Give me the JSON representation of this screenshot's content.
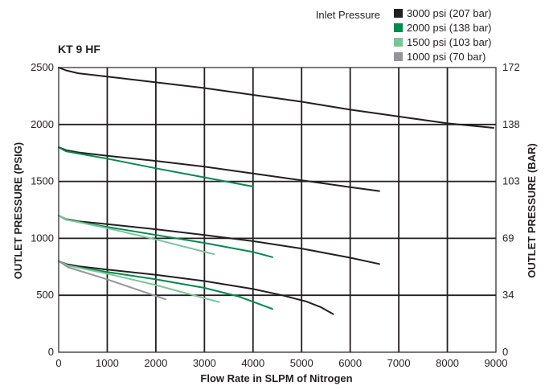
{
  "chart_data": {
    "type": "line",
    "title": "KT 9 HF",
    "xlabel": "Flow Rate in SLPM of Nitrogen",
    "ylabel": "OUTLET PRESSURE (PSIG)",
    "ylabel_right": "OUTLET PRESSURE (BAR)",
    "xlim": [
      0,
      9000
    ],
    "ylim": [
      0,
      2500
    ],
    "x_ticks": [
      0,
      1000,
      2000,
      3000,
      4000,
      5000,
      6000,
      7000,
      8000,
      9000
    ],
    "y_ticks": [
      0,
      500,
      1000,
      1500,
      2000,
      2500
    ],
    "y_ticks_right": [
      {
        "value": 0,
        "label": "0"
      },
      {
        "value": 500,
        "label": "34"
      },
      {
        "value": 1000,
        "label": "69"
      },
      {
        "value": 1500,
        "label": "103"
      },
      {
        "value": 2000,
        "label": "138"
      },
      {
        "value": 2500,
        "label": "172"
      }
    ],
    "grid": true,
    "legend": {
      "title": "Inlet Pressure",
      "placement": "top-right",
      "entries": [
        {
          "label": "3000 psi (207 bar)",
          "color": "#231f20"
        },
        {
          "label": "2000 psi (138 bar)",
          "color": "#008a4e"
        },
        {
          "label": "1500 psi (103 bar)",
          "color": "#7bc49a"
        },
        {
          "label": "1000 psi (70 bar)",
          "color": "#939598"
        }
      ]
    },
    "series": [
      {
        "inlet": "3000",
        "color": "#231f20",
        "points": [
          [
            0,
            2500
          ],
          [
            150,
            2475
          ],
          [
            400,
            2450
          ],
          [
            1000,
            2420
          ],
          [
            2000,
            2370
          ],
          [
            3000,
            2320
          ],
          [
            4000,
            2260
          ],
          [
            5000,
            2200
          ],
          [
            6000,
            2130
          ],
          [
            7000,
            2070
          ],
          [
            8000,
            2010
          ],
          [
            8950,
            1970
          ]
        ]
      },
      {
        "inlet": "3000",
        "color": "#231f20",
        "points": [
          [
            0,
            1800
          ],
          [
            150,
            1775
          ],
          [
            400,
            1755
          ],
          [
            1000,
            1725
          ],
          [
            2000,
            1680
          ],
          [
            3000,
            1630
          ],
          [
            4000,
            1570
          ],
          [
            5000,
            1510
          ],
          [
            6000,
            1450
          ],
          [
            6600,
            1415
          ]
        ]
      },
      {
        "inlet": "3000",
        "color": "#231f20",
        "points": [
          [
            0,
            1200
          ],
          [
            150,
            1170
          ],
          [
            400,
            1150
          ],
          [
            1000,
            1125
          ],
          [
            2000,
            1080
          ],
          [
            3000,
            1030
          ],
          [
            4000,
            975
          ],
          [
            5000,
            910
          ],
          [
            6000,
            830
          ],
          [
            6600,
            775
          ]
        ]
      },
      {
        "inlet": "3000",
        "color": "#231f20",
        "points": [
          [
            0,
            800
          ],
          [
            150,
            775
          ],
          [
            400,
            755
          ],
          [
            1000,
            725
          ],
          [
            2000,
            680
          ],
          [
            3000,
            625
          ],
          [
            4000,
            555
          ],
          [
            4600,
            500
          ],
          [
            5100,
            445
          ],
          [
            5400,
            395
          ],
          [
            5650,
            335
          ]
        ]
      },
      {
        "inlet": "2000",
        "color": "#008a4e",
        "points": [
          [
            0,
            1800
          ],
          [
            150,
            1765
          ],
          [
            400,
            1745
          ],
          [
            1000,
            1700
          ],
          [
            2000,
            1615
          ],
          [
            3000,
            1535
          ],
          [
            4000,
            1455
          ]
        ]
      },
      {
        "inlet": "2000",
        "color": "#008a4e",
        "points": [
          [
            0,
            1200
          ],
          [
            150,
            1165
          ],
          [
            400,
            1145
          ],
          [
            1000,
            1100
          ],
          [
            2000,
            1030
          ],
          [
            3000,
            960
          ],
          [
            4000,
            880
          ],
          [
            4400,
            835
          ]
        ]
      },
      {
        "inlet": "2000",
        "color": "#008a4e",
        "points": [
          [
            0,
            800
          ],
          [
            150,
            765
          ],
          [
            400,
            745
          ],
          [
            1000,
            705
          ],
          [
            2000,
            640
          ],
          [
            3000,
            565
          ],
          [
            3700,
            490
          ],
          [
            4400,
            380
          ]
        ]
      },
      {
        "inlet": "1500",
        "color": "#7bc49a",
        "points": [
          [
            0,
            1200
          ],
          [
            200,
            1160
          ],
          [
            1000,
            1090
          ],
          [
            2000,
            990
          ],
          [
            3200,
            860
          ]
        ]
      },
      {
        "inlet": "1500",
        "color": "#7bc49a",
        "points": [
          [
            0,
            800
          ],
          [
            200,
            760
          ],
          [
            1000,
            690
          ],
          [
            2000,
            590
          ],
          [
            3300,
            440
          ]
        ]
      },
      {
        "inlet": "1000",
        "color": "#939598",
        "points": [
          [
            0,
            800
          ],
          [
            200,
            745
          ],
          [
            1000,
            640
          ],
          [
            2200,
            465
          ]
        ]
      }
    ]
  }
}
